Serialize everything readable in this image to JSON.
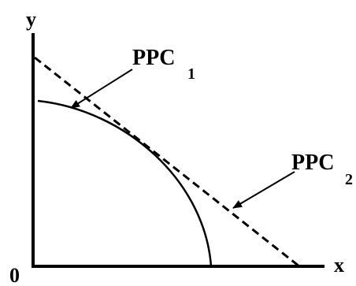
{
  "axes": {
    "x_label": "x",
    "y_label": "y",
    "origin_label": "0"
  },
  "curves": {
    "ppc1": {
      "name": "PPC",
      "subscript": "1",
      "style": "solid",
      "shape": "concave"
    },
    "ppc2": {
      "name": "PPC",
      "subscript": "2",
      "style": "dashed",
      "shape": "straight"
    }
  },
  "colors": {
    "ink": "#000000",
    "background": "#ffffff"
  }
}
